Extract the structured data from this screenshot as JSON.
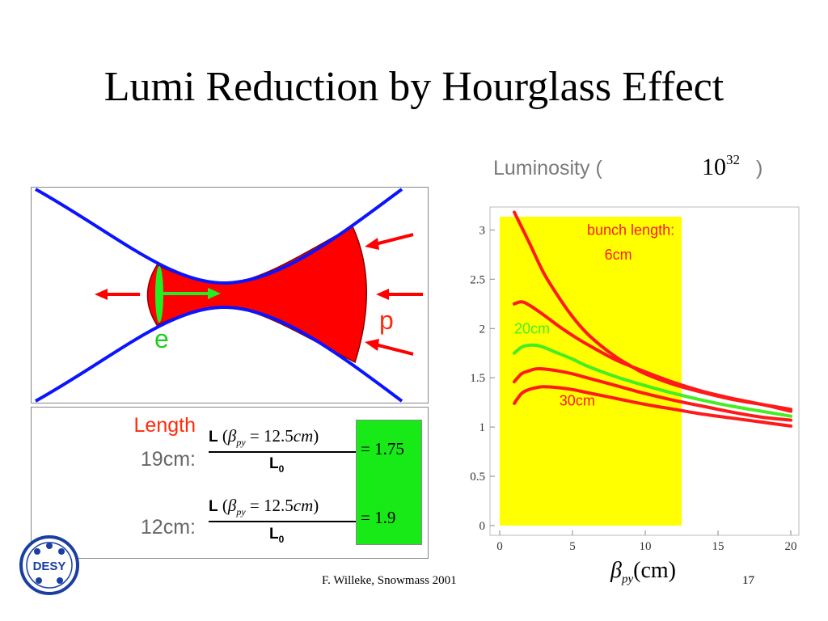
{
  "slide": {
    "title": "Lumi Reduction by Hourglass Effect",
    "footer_author": "F. Willeke, Snowmass  2001",
    "page_number": "17",
    "logo_text": "DESY"
  },
  "diagram": {
    "electron_label": "e",
    "proton_label": "p"
  },
  "formulas": {
    "length_label": "Length",
    "rows": [
      {
        "label": "19cm:",
        "L": "L",
        "open": "(",
        "beta": "β",
        "beta_sub": "py",
        "eq": "= 12.5",
        "unit": "cm",
        "close": ")",
        "den": "L",
        "den_sub": "0",
        "result": "= 1.75"
      },
      {
        "label": "12cm:",
        "L": "L",
        "open": "(",
        "beta": "β",
        "beta_sub": "py",
        "eq": "= 12.5",
        "unit": "cm",
        "close": ")",
        "den": "L",
        "den_sub": "0",
        "result": "= 1.9"
      }
    ]
  },
  "chart_data": {
    "type": "line",
    "title": "Luminosity (",
    "title_power_base": "10",
    "title_power_exp": "32",
    "title_close": ")",
    "xlabel_symbol": "β",
    "xlabel_sub": "py",
    "xlabel_unit": "(cm)",
    "xlim": [
      0,
      20
    ],
    "ylim": [
      0,
      3.2
    ],
    "x_ticks": [
      0,
      5,
      10,
      15,
      20
    ],
    "y_ticks": [
      0,
      0.5,
      1,
      1.5,
      2,
      2.5,
      3
    ],
    "highlight_region": {
      "x": [
        0,
        12.5
      ],
      "color": "#ffff00"
    },
    "annotations": [
      "bunch length:",
      "6cm",
      "20cm",
      "30cm"
    ],
    "series": [
      {
        "color": "#ff1a1a",
        "points": [
          [
            1,
            3.18
          ],
          [
            2,
            2.88
          ],
          [
            3,
            2.57
          ],
          [
            4,
            2.33
          ],
          [
            5,
            2.12
          ],
          [
            6,
            1.95
          ],
          [
            7,
            1.82
          ],
          [
            8,
            1.71
          ],
          [
            9,
            1.62
          ],
          [
            10,
            1.54
          ],
          [
            12,
            1.43
          ],
          [
            14,
            1.35
          ],
          [
            16,
            1.28
          ],
          [
            18,
            1.23
          ],
          [
            20,
            1.18
          ]
        ]
      },
      {
        "color": "#ff1a1a",
        "points": [
          [
            1,
            2.25
          ],
          [
            1.5,
            2.27
          ],
          [
            2,
            2.24
          ],
          [
            3,
            2.14
          ],
          [
            4,
            2.03
          ],
          [
            5,
            1.93
          ],
          [
            6,
            1.84
          ],
          [
            8,
            1.68
          ],
          [
            10,
            1.56
          ],
          [
            12,
            1.45
          ],
          [
            14,
            1.36
          ],
          [
            16,
            1.29
          ],
          [
            18,
            1.23
          ],
          [
            20,
            1.16
          ]
        ]
      },
      {
        "color": "#44ee22",
        "points": [
          [
            1,
            1.75
          ],
          [
            1.5,
            1.81
          ],
          [
            2,
            1.83
          ],
          [
            2.5,
            1.83
          ],
          [
            3,
            1.81
          ],
          [
            4,
            1.75
          ],
          [
            5,
            1.69
          ],
          [
            6,
            1.62
          ],
          [
            8,
            1.51
          ],
          [
            10,
            1.42
          ],
          [
            12,
            1.34
          ],
          [
            14,
            1.27
          ],
          [
            16,
            1.21
          ],
          [
            18,
            1.16
          ],
          [
            20,
            1.11
          ]
        ]
      },
      {
        "color": "#ff1a1a",
        "points": [
          [
            1,
            1.46
          ],
          [
            1.5,
            1.54
          ],
          [
            2,
            1.57
          ],
          [
            2.5,
            1.59
          ],
          [
            3,
            1.59
          ],
          [
            4,
            1.57
          ],
          [
            5,
            1.54
          ],
          [
            6,
            1.5
          ],
          [
            8,
            1.42
          ],
          [
            10,
            1.34
          ],
          [
            12,
            1.27
          ],
          [
            14,
            1.21
          ],
          [
            16,
            1.15
          ],
          [
            18,
            1.1
          ],
          [
            20,
            1.07
          ]
        ]
      },
      {
        "color": "#ff1a1a",
        "points": [
          [
            1,
            1.24
          ],
          [
            1.5,
            1.34
          ],
          [
            2,
            1.38
          ],
          [
            2.5,
            1.4
          ],
          [
            3,
            1.41
          ],
          [
            4,
            1.4
          ],
          [
            5,
            1.38
          ],
          [
            6,
            1.35
          ],
          [
            8,
            1.29
          ],
          [
            10,
            1.23
          ],
          [
            12,
            1.18
          ],
          [
            14,
            1.13
          ],
          [
            16,
            1.09
          ],
          [
            18,
            1.05
          ],
          [
            20,
            1.01
          ]
        ]
      }
    ],
    "colors": {
      "red_curve": "#ff1a1a",
      "green_curve": "#44ee22",
      "label_red": "#ff1a1a",
      "label_green": "#44ee22"
    }
  }
}
